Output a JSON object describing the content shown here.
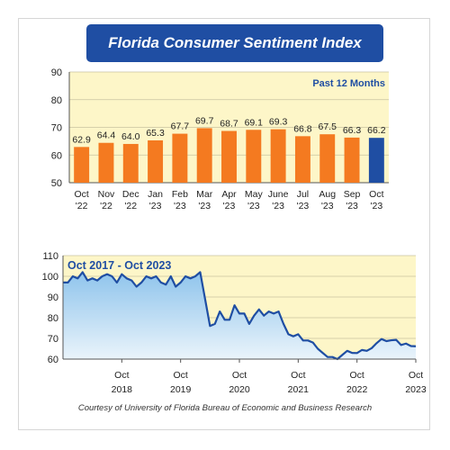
{
  "header": {
    "title": "Florida Consumer Sentiment Index"
  },
  "source_note": "Courtesy of University of Florida Bureau of Economic and Business Research",
  "colors": {
    "bar": "#f47a20",
    "bar_highlight": "#1f4ea3",
    "plot_bg": "#fdf6c8",
    "line": "#1f4ea3",
    "area_top": "#8fc4ec",
    "area_bottom": "#eaf4fb",
    "banner": "#1f4ea3"
  },
  "chart_data": [
    {
      "type": "bar",
      "annotation": "Past 12 Months",
      "ylim": [
        50,
        90
      ],
      "yticks": [
        50,
        60,
        70,
        80,
        90
      ],
      "categories": [
        [
          "Oct",
          "'22"
        ],
        [
          "Nov",
          "'22"
        ],
        [
          "Dec",
          "'22"
        ],
        [
          "Jan",
          "'23"
        ],
        [
          "Feb",
          "'23"
        ],
        [
          "Mar",
          "'23"
        ],
        [
          "Apr",
          "'23"
        ],
        [
          "May",
          "'23"
        ],
        [
          "June",
          "'23"
        ],
        [
          "Jul",
          "'23"
        ],
        [
          "Aug",
          "'23"
        ],
        [
          "Sep",
          "'23"
        ],
        [
          "Oct",
          "'23"
        ]
      ],
      "values": [
        62.9,
        64.4,
        64.0,
        65.3,
        67.7,
        69.7,
        68.7,
        69.1,
        69.3,
        66.8,
        67.5,
        66.3,
        66.2
      ],
      "value_labels": [
        "62.9",
        "64.4",
        "64.0",
        "65.3",
        "67.7",
        "69.7",
        "68.7",
        "69.1",
        "69.3",
        "66.8",
        "67.5",
        "66.3",
        "66.2"
      ],
      "highlight_index": 12,
      "grid": true
    },
    {
      "type": "area",
      "annotation": "Oct 2017 - Oct 2023",
      "ylim": [
        60,
        110
      ],
      "yticks": [
        60,
        70,
        80,
        90,
        100,
        110
      ],
      "xlim": [
        "2017-10",
        "2023-10"
      ],
      "xticks": [
        {
          "x": "2018-10",
          "label": [
            "Oct",
            "2018"
          ]
        },
        {
          "x": "2019-10",
          "label": [
            "Oct",
            "2019"
          ]
        },
        {
          "x": "2020-10",
          "label": [
            "Oct",
            "2020"
          ]
        },
        {
          "x": "2021-10",
          "label": [
            "Oct",
            "2021"
          ]
        },
        {
          "x": "2022-10",
          "label": [
            "Oct",
            "2022"
          ]
        },
        {
          "x": "2023-10",
          "label": [
            "Oct",
            "2023"
          ]
        }
      ],
      "grid": true,
      "points": [
        [
          "2017-10",
          97
        ],
        [
          "2017-11",
          97
        ],
        [
          "2017-12",
          100
        ],
        [
          "2018-01",
          99
        ],
        [
          "2018-02",
          102
        ],
        [
          "2018-03",
          98
        ],
        [
          "2018-04",
          99
        ],
        [
          "2018-05",
          98
        ],
        [
          "2018-06",
          100
        ],
        [
          "2018-07",
          101
        ],
        [
          "2018-08",
          100
        ],
        [
          "2018-09",
          97
        ],
        [
          "2018-10",
          101
        ],
        [
          "2018-11",
          99
        ],
        [
          "2018-12",
          98
        ],
        [
          "2019-01",
          95
        ],
        [
          "2019-02",
          97
        ],
        [
          "2019-03",
          100
        ],
        [
          "2019-04",
          99
        ],
        [
          "2019-05",
          100
        ],
        [
          "2019-06",
          97
        ],
        [
          "2019-07",
          96
        ],
        [
          "2019-08",
          100
        ],
        [
          "2019-09",
          95
        ],
        [
          "2019-10",
          97
        ],
        [
          "2019-11",
          100
        ],
        [
          "2019-12",
          99
        ],
        [
          "2020-01",
          100
        ],
        [
          "2020-02",
          102
        ],
        [
          "2020-03",
          89
        ],
        [
          "2020-04",
          76
        ],
        [
          "2020-05",
          77
        ],
        [
          "2020-06",
          83
        ],
        [
          "2020-07",
          79
        ],
        [
          "2020-08",
          79
        ],
        [
          "2020-09",
          86
        ],
        [
          "2020-10",
          82
        ],
        [
          "2020-11",
          82
        ],
        [
          "2020-12",
          77
        ],
        [
          "2021-01",
          81
        ],
        [
          "2021-02",
          84
        ],
        [
          "2021-03",
          81
        ],
        [
          "2021-04",
          83
        ],
        [
          "2021-05",
          82
        ],
        [
          "2021-06",
          83
        ],
        [
          "2021-07",
          77
        ],
        [
          "2021-08",
          72
        ],
        [
          "2021-09",
          71
        ],
        [
          "2021-10",
          72
        ],
        [
          "2021-11",
          69
        ],
        [
          "2021-12",
          69
        ],
        [
          "2022-01",
          68
        ],
        [
          "2022-02",
          65
        ],
        [
          "2022-03",
          63
        ],
        [
          "2022-04",
          61
        ],
        [
          "2022-05",
          61
        ],
        [
          "2022-06",
          60
        ],
        [
          "2022-07",
          62
        ],
        [
          "2022-08",
          64
        ],
        [
          "2022-09",
          63
        ],
        [
          "2022-10",
          62.9
        ],
        [
          "2022-11",
          64.4
        ],
        [
          "2022-12",
          64.0
        ],
        [
          "2023-01",
          65.3
        ],
        [
          "2023-02",
          67.7
        ],
        [
          "2023-03",
          69.7
        ],
        [
          "2023-04",
          68.7
        ],
        [
          "2023-05",
          69.1
        ],
        [
          "2023-06",
          69.3
        ],
        [
          "2023-07",
          66.8
        ],
        [
          "2023-08",
          67.5
        ],
        [
          "2023-09",
          66.3
        ],
        [
          "2023-10",
          66.2
        ]
      ]
    }
  ]
}
